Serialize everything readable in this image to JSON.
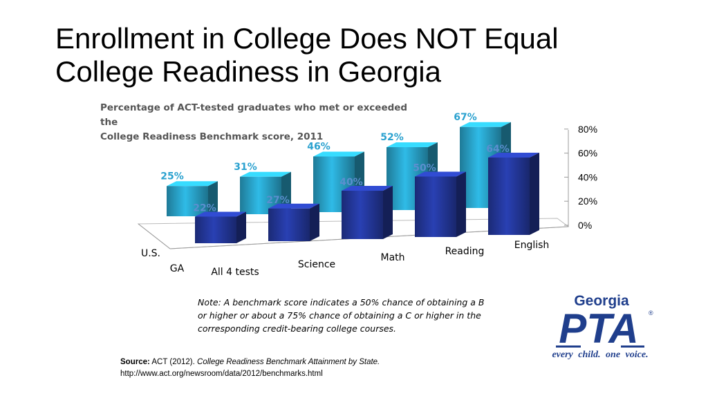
{
  "title": {
    "line1": "Enrollment in College Does NOT Equal",
    "line2": "College Readiness in Georgia"
  },
  "note": "Note: A benchmark score indicates a 50% chance of obtaining a B or higher or about a 75% chance of obtaining a C or higher in the corresponding credit-bearing college courses.",
  "source": {
    "label": "Source:",
    "org": "ACT (2012).",
    "doc": "College Readiness Benchmark Attainment by State.",
    "url": "http://www.act.org/newsroom/data/2012/benchmarks.html"
  },
  "logo": {
    "line1": "Georgia",
    "line2": "PTA",
    "mark": "®",
    "tag_a": "every",
    "tag_b": "child.",
    "tag_c": "one",
    "tag_d": "voice."
  },
  "chart_data": {
    "type": "bar",
    "subtitle_line1": "Percentage of ACT-tested graduates who met or exceeded the",
    "subtitle_line2": "College Readiness Benchmark score, 2011",
    "categories": [
      "All 4 tests",
      "Science",
      "Math",
      "Reading",
      "English"
    ],
    "series": [
      {
        "name": "U.S.",
        "values": [
          25,
          31,
          46,
          52,
          67
        ],
        "labels": [
          "25%",
          "31%",
          "46%",
          "52%",
          "67%"
        ],
        "color": "#29a3c9",
        "label_color": "#2aa1cf"
      },
      {
        "name": "GA",
        "values": [
          22,
          27,
          40,
          50,
          64
        ],
        "labels": [
          "22%",
          "27%",
          "40%",
          "50%",
          "64%"
        ],
        "color": "#24389c",
        "label_color": "#5b8fcf"
      }
    ],
    "yticks": [
      "0%",
      "20%",
      "40%",
      "60%",
      "80%"
    ],
    "ylim": [
      0,
      80
    ],
    "legend": "depth-axis"
  }
}
